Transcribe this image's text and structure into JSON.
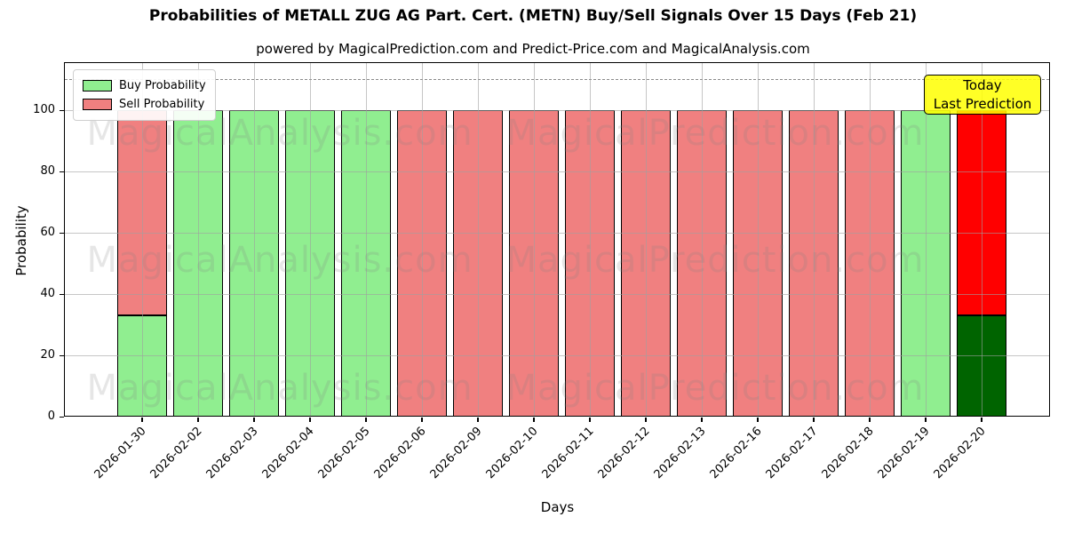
{
  "header": {
    "title": "Probabilities of METALL ZUG AG Part. Cert. (METN) Buy/Sell Signals Over 15 Days (Feb 21)",
    "subtitle": "powered by MagicalPrediction.com and Predict-Price.com and MagicalAnalysis.com"
  },
  "legend": {
    "items": [
      {
        "label": "Buy Probability",
        "color": "#90EE90"
      },
      {
        "label": "Sell Probability",
        "color": "#F08080"
      }
    ]
  },
  "annotation": {
    "line1": "Today",
    "line2": "Last Prediction",
    "bg_color": "rgba(255,255,0,0.85)"
  },
  "watermarks": {
    "texts": [
      "MagicalAnalysis.com",
      "MagicalPrediction.com"
    ],
    "color": "rgba(128,128,128,0.2)"
  },
  "chart_data": {
    "type": "bar",
    "stacked": true,
    "title": "Probabilities of METALL ZUG AG Part. Cert. (METN) Buy/Sell Signals Over 15 Days (Feb 21)",
    "xlabel": "Days",
    "ylabel": "Probability",
    "categories": [
      "2026-01-30",
      "2026-02-02",
      "2026-02-03",
      "2026-02-04",
      "2026-02-05",
      "2026-02-06",
      "2026-02-09",
      "2026-02-10",
      "2026-02-11",
      "2026-02-12",
      "2026-02-13",
      "2026-02-16",
      "2026-02-17",
      "2026-02-18",
      "2026-02-19",
      "2026-02-20"
    ],
    "series": [
      {
        "name": "Buy Probability",
        "values": [
          33,
          100,
          100,
          100,
          100,
          0,
          0,
          0,
          0,
          0,
          0,
          0,
          0,
          0,
          100,
          33
        ]
      },
      {
        "name": "Sell Probability",
        "values": [
          67,
          0,
          0,
          0,
          0,
          100,
          100,
          100,
          100,
          100,
          100,
          100,
          100,
          100,
          0,
          67
        ]
      }
    ],
    "colors": {
      "buy": "#90EE90",
      "sell": "#F08080"
    },
    "today_index": 15,
    "today_colors": {
      "buy": "#006400",
      "sell": "#FF0000"
    },
    "ylim": [
      0,
      115
    ],
    "yticks": [
      0,
      20,
      40,
      60,
      80,
      100
    ],
    "threshold_line": {
      "y": 110,
      "style": "dashed",
      "color": "#8a8a8a"
    },
    "grid": true,
    "legend_position": "upper left"
  }
}
